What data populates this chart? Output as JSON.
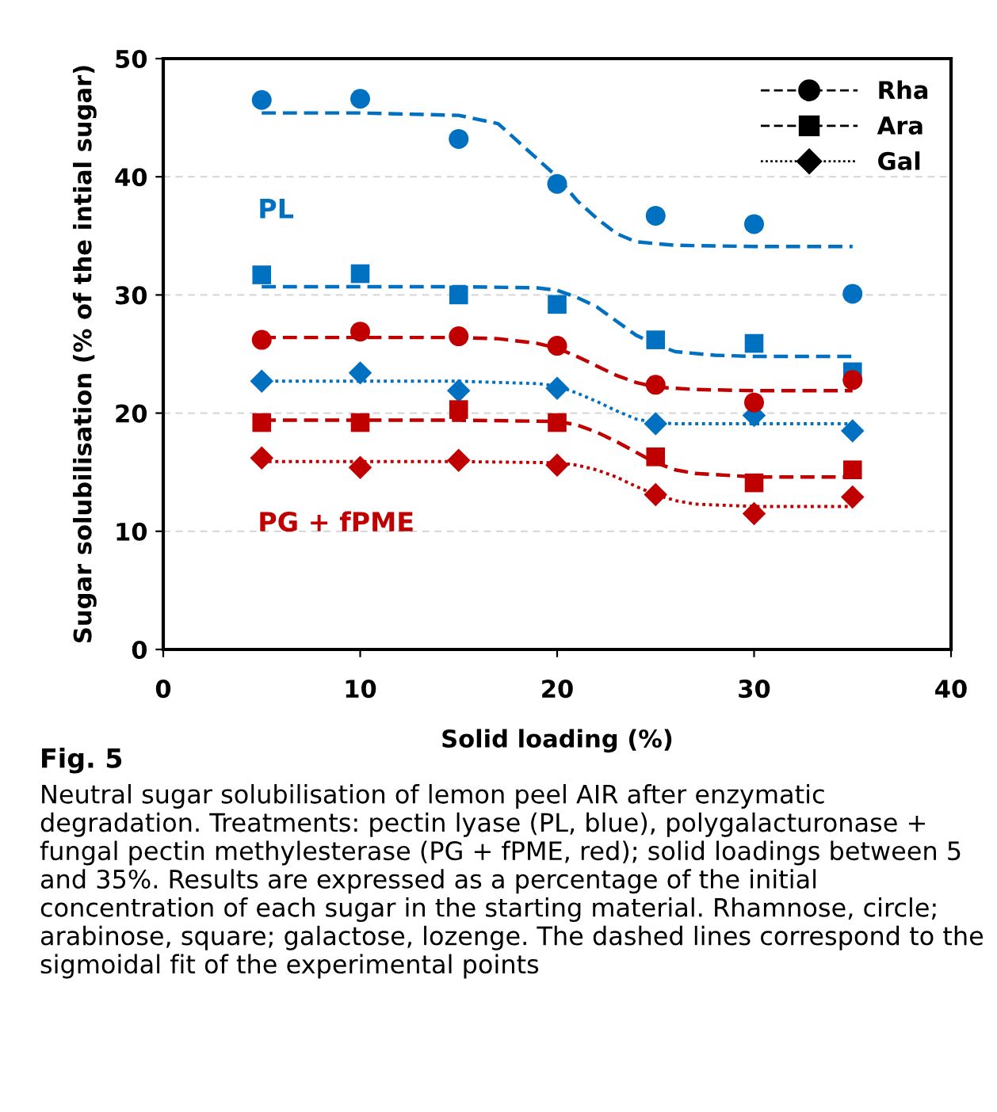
{
  "chart_data": {
    "type": "scatter",
    "xlabel": "Solid loading (%)",
    "ylabel": "Sugar solubilisation (% of the intial sugar)",
    "xlim": [
      0,
      40
    ],
    "xticks": [
      0,
      10,
      20,
      30,
      40
    ],
    "ylim": [
      0,
      50
    ],
    "yticks": [
      0,
      10,
      20,
      30,
      40,
      50
    ],
    "grid": "y",
    "legend": "top right",
    "x": [
      5,
      10,
      15,
      20,
      25,
      30,
      35
    ],
    "series": [
      {
        "name": "Rha",
        "marker": "circle",
        "line_style": "dashed",
        "color": "#0070c0",
        "values": [
          46.5,
          46.6,
          43.2,
          39.4,
          36.7,
          36.0,
          30.1
        ]
      },
      {
        "name": "Ara",
        "marker": "square",
        "line_style": "dashed",
        "color": "#0070c0",
        "values": [
          31.7,
          31.8,
          30.0,
          29.2,
          26.2,
          25.9,
          23.5
        ]
      },
      {
        "name": "Gal",
        "marker": "diamond",
        "line_style": "dotted",
        "color": "#0070c0",
        "values": [
          22.7,
          23.4,
          21.9,
          22.1,
          19.1,
          19.8,
          18.5
        ]
      },
      {
        "marker": "circle",
        "color": "#c00000",
        "values": [
          26.2,
          26.9,
          26.5,
          25.7,
          22.4,
          20.9,
          22.8
        ]
      },
      {
        "marker": "square",
        "color": "#c00000",
        "values": [
          19.2,
          19.2,
          20.3,
          19.2,
          16.3,
          14.1,
          15.2
        ]
      },
      {
        "marker": "diamond",
        "color": "#c00000",
        "values": [
          16.2,
          15.4,
          16.0,
          15.6,
          13.1,
          11.5,
          12.9
        ]
      },
      {
        "type": "line",
        "line_style": "dashed",
        "color": "#0070c0",
        "x": [
          5,
          10,
          15,
          17,
          18,
          19,
          20,
          21,
          22,
          23,
          24,
          26,
          30,
          35
        ],
        "values": [
          45.4,
          45.4,
          45.2,
          44.5,
          43.0,
          41.5,
          40.0,
          38.0,
          36.5,
          35.2,
          34.5,
          34.2,
          34.1,
          34.1
        ]
      },
      {
        "type": "line",
        "line_style": "dashed",
        "color": "#0070c0",
        "x": [
          5,
          10,
          15,
          19,
          20,
          21,
          22,
          23,
          24,
          25,
          26,
          28,
          30,
          35
        ],
        "values": [
          30.7,
          30.7,
          30.7,
          30.6,
          30.4,
          29.8,
          29.0,
          27.8,
          26.6,
          25.8,
          25.2,
          24.9,
          24.8,
          24.8
        ]
      },
      {
        "type": "line",
        "line_style": "dotted",
        "color": "#0070c0",
        "x": [
          5,
          10,
          15,
          19,
          20,
          21,
          22,
          23,
          24,
          25,
          26,
          30,
          35
        ],
        "values": [
          22.7,
          22.7,
          22.7,
          22.5,
          22.3,
          21.7,
          21.0,
          20.2,
          19.5,
          19.2,
          19.1,
          19.1,
          19.1
        ]
      },
      {
        "type": "line",
        "line_style": "dashed",
        "color": "#c00000",
        "x": [
          5,
          10,
          15,
          17,
          19,
          20,
          21,
          22,
          23,
          24,
          25,
          27,
          30,
          35
        ],
        "values": [
          26.4,
          26.4,
          26.4,
          26.3,
          25.9,
          25.5,
          24.8,
          24.0,
          23.2,
          22.6,
          22.2,
          22.0,
          21.9,
          21.9
        ]
      },
      {
        "type": "line",
        "line_style": "dashed",
        "color": "#c00000",
        "x": [
          5,
          10,
          15,
          20,
          21,
          22,
          23,
          24,
          25,
          26,
          27,
          30,
          35
        ],
        "values": [
          19.4,
          19.4,
          19.4,
          19.3,
          19.0,
          18.4,
          17.6,
          16.7,
          15.8,
          15.2,
          14.9,
          14.6,
          14.6
        ]
      },
      {
        "type": "line",
        "line_style": "dotted",
        "color": "#c00000",
        "x": [
          5,
          10,
          15,
          20,
          21,
          22,
          23,
          24,
          25,
          26,
          27,
          30,
          35
        ],
        "values": [
          15.9,
          15.9,
          15.9,
          15.8,
          15.6,
          15.2,
          14.6,
          13.8,
          13.1,
          12.6,
          12.3,
          12.1,
          12.1
        ]
      }
    ],
    "annotations": [
      "PL",
      "PG + fPME",
      "Fig. 5",
      "Neutral sugar solubilisation of lemon peel AIR after enzymatic degradation. Treatments: pectin lyase (PL, blue), polygalacturonase + fungal pectin methylesterase (PG + fPME, red); solid loadings between 5 and 35%. Results are expressed as a percentage of the initial concentration of each sugar in the starting material. Rhamnose, circle; arabinose, square; galactose, lozenge. The dashed lines correspond to the sigmoidal fit of the experimental points"
    ]
  }
}
